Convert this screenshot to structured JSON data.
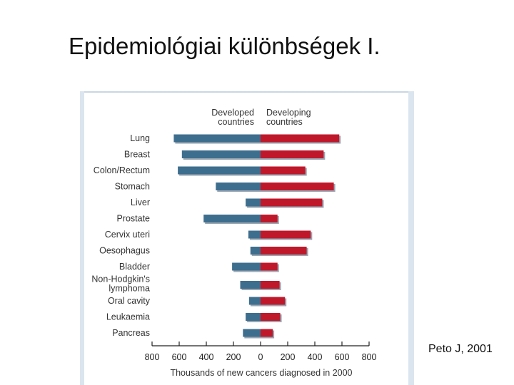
{
  "slide": {
    "title": "Epidemiológiai különbségek I.",
    "citation": "Peto J, 2001"
  },
  "colors": {
    "developed": "#3e6e8e",
    "developing": "#c0182b",
    "shadow": "#9aa6b2",
    "axis": "#222222"
  },
  "chart_data": {
    "type": "bar",
    "orientation": "horizontal-diverging",
    "title": "",
    "categories": [
      "Lung",
      "Breast",
      "Colon/Rectum",
      "Stomach",
      "Liver",
      "Prostate",
      "Cervix uteri",
      "Oesophagus",
      "Bladder",
      "Non-Hodgkin's lymphoma",
      "Oral cavity",
      "Leukaemia",
      "Pancreas"
    ],
    "category_lines": [
      [
        "Lung"
      ],
      [
        "Breast"
      ],
      [
        "Colon/Rectum"
      ],
      [
        "Stomach"
      ],
      [
        "Liver"
      ],
      [
        "Prostate"
      ],
      [
        "Cervix uteri"
      ],
      [
        "Oesophagus"
      ],
      [
        "Bladder"
      ],
      [
        "Non-Hodgkin's",
        "lymphoma"
      ],
      [
        "Oral cavity"
      ],
      [
        "Leukaemia"
      ],
      [
        "Pancreas"
      ]
    ],
    "series": [
      {
        "name": "Developed countries",
        "name_lines": [
          "Developed",
          "countries"
        ],
        "side": "left",
        "values": [
          640,
          580,
          610,
          330,
          110,
          420,
          90,
          75,
          210,
          150,
          85,
          110,
          130
        ]
      },
      {
        "name": "Developing countries",
        "name_lines": [
          "Developing",
          "countries"
        ],
        "side": "right",
        "values": [
          580,
          465,
          330,
          540,
          455,
          125,
          370,
          340,
          125,
          140,
          180,
          145,
          90
        ]
      }
    ],
    "xlabel": "Thousands of new cancers diagnosed in 2000",
    "xlim": [
      -800,
      800
    ],
    "xticks": [
      -800,
      -600,
      -400,
      -200,
      0,
      200,
      400,
      600,
      800
    ],
    "xtick_labels": [
      "800",
      "600",
      "400",
      "200",
      "0",
      "200",
      "400",
      "600",
      "800"
    ],
    "grid": false
  }
}
